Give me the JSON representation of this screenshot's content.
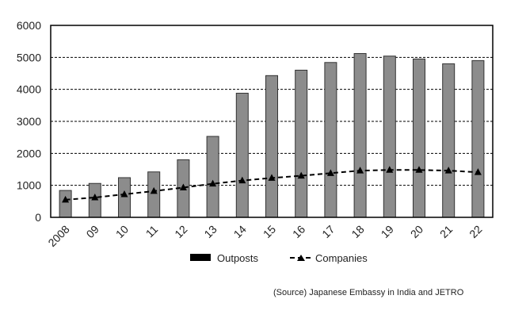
{
  "chart_data": {
    "type": "bar",
    "categories": [
      "2008",
      "09",
      "10",
      "11",
      "12",
      "13",
      "14",
      "15",
      "16",
      "17",
      "18",
      "19",
      "20",
      "21",
      "22"
    ],
    "series": [
      {
        "name": "Outposts",
        "type": "bar",
        "color": "#8c8c8c",
        "values": [
          840,
          1060,
          1240,
          1420,
          1800,
          2530,
          3880,
          4430,
          4600,
          4840,
          5120,
          5040,
          4950,
          4800,
          4900
        ]
      },
      {
        "name": "Companies",
        "type": "line",
        "color": "#000000",
        "line_style": "dashed",
        "marker": "triangle",
        "values": [
          550,
          620,
          720,
          820,
          930,
          1050,
          1150,
          1230,
          1300,
          1380,
          1460,
          1480,
          1480,
          1460,
          1410
        ]
      }
    ],
    "ylim": [
      0,
      6000
    ],
    "yticks": [
      "0",
      "1000",
      "2000",
      "3000",
      "4000",
      "5000",
      "6000"
    ],
    "grid": "horizontal dashed",
    "legend_position": "bottom-center",
    "source": "(Source) Japanese Embassy in India and JETRO"
  }
}
